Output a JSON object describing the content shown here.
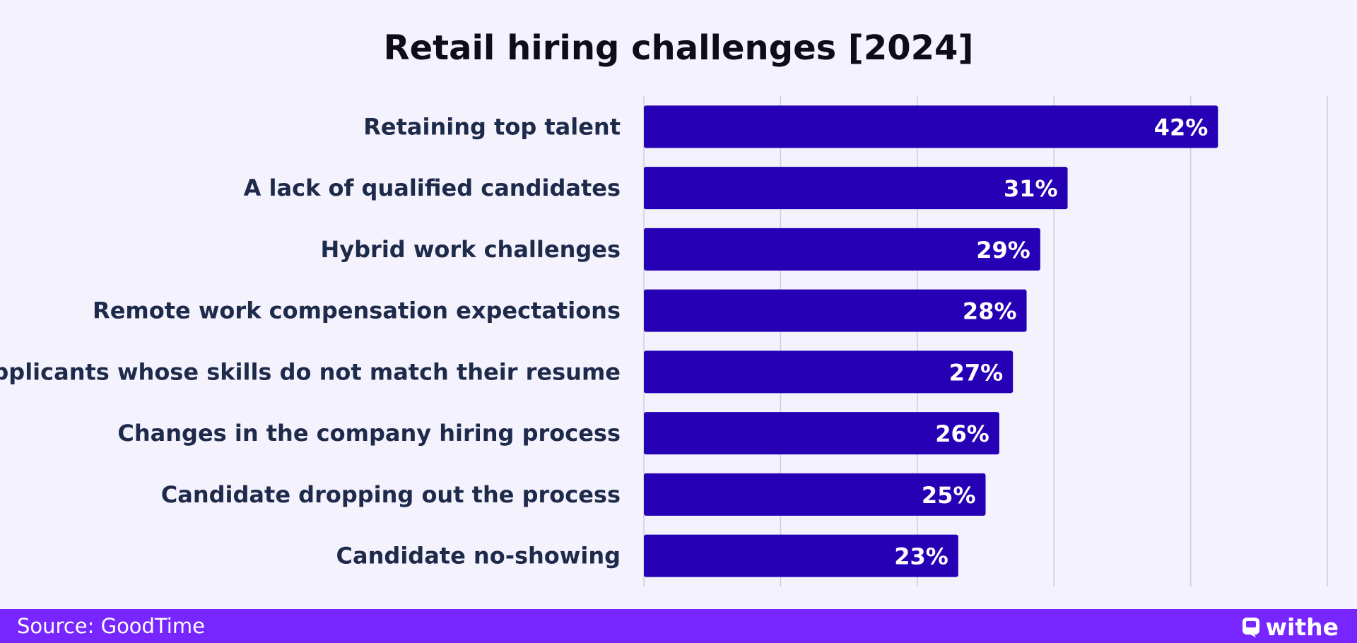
{
  "chart_data": {
    "type": "bar",
    "orientation": "horizontal",
    "title": "Retail hiring challenges [2024]",
    "categories": [
      "Retaining top talent",
      "A lack of qualified candidates",
      "Hybrid work challenges",
      "Remote work compensation expectations",
      "Applicants whose skills do not match their resume",
      "Changes in the company hiring process",
      "Candidate dropping out the process",
      "Candidate no-showing"
    ],
    "values": [
      42,
      31,
      29,
      28,
      27,
      26,
      25,
      23
    ],
    "value_labels": [
      "42%",
      "31%",
      "29%",
      "28%",
      "27%",
      "26%",
      "25%",
      "23%"
    ],
    "xlim": [
      0,
      50
    ],
    "grid": true,
    "bar_color": "#2600b4",
    "label_color": "#1e2a4a",
    "value_label_color": "#ffffff",
    "gridline_color": "#cdcce0"
  },
  "footer": {
    "source": "Source: GoodTime",
    "brand": "withe",
    "background": "#7826ff"
  }
}
